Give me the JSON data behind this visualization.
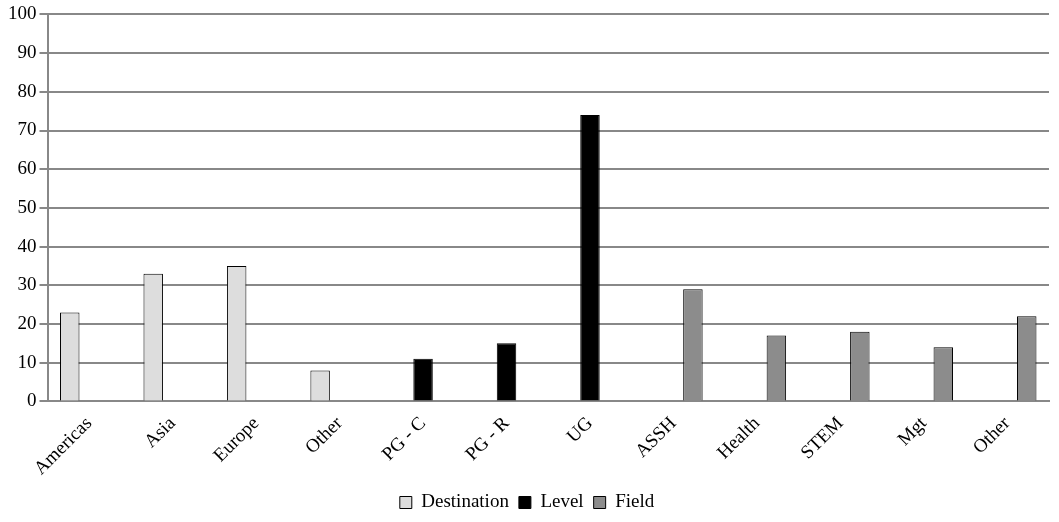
{
  "chart_data": {
    "type": "bar",
    "categories": [
      "Americas",
      "Asia",
      "Europe",
      "Other",
      "PG - C",
      "PG - R",
      "UG",
      "ASSH",
      "Health",
      "STEM",
      "Mgt",
      "Other"
    ],
    "series": [
      {
        "name": "Destination",
        "color": "#dddddd",
        "values": [
          23,
          33,
          35,
          8,
          null,
          null,
          null,
          null,
          null,
          null,
          null,
          null
        ]
      },
      {
        "name": "Level",
        "color": "#000000",
        "values": [
          null,
          null,
          null,
          null,
          11,
          15,
          74,
          null,
          null,
          null,
          null,
          null
        ]
      },
      {
        "name": "Field",
        "color": "#8c8c8c",
        "values": [
          null,
          null,
          null,
          null,
          null,
          null,
          null,
          29,
          17,
          18,
          14,
          22
        ]
      }
    ],
    "ylim": [
      0,
      100
    ],
    "yticks": [
      0,
      10,
      20,
      30,
      40,
      50,
      60,
      70,
      80,
      90,
      100
    ],
    "grid": "y",
    "legend": "bottom"
  }
}
